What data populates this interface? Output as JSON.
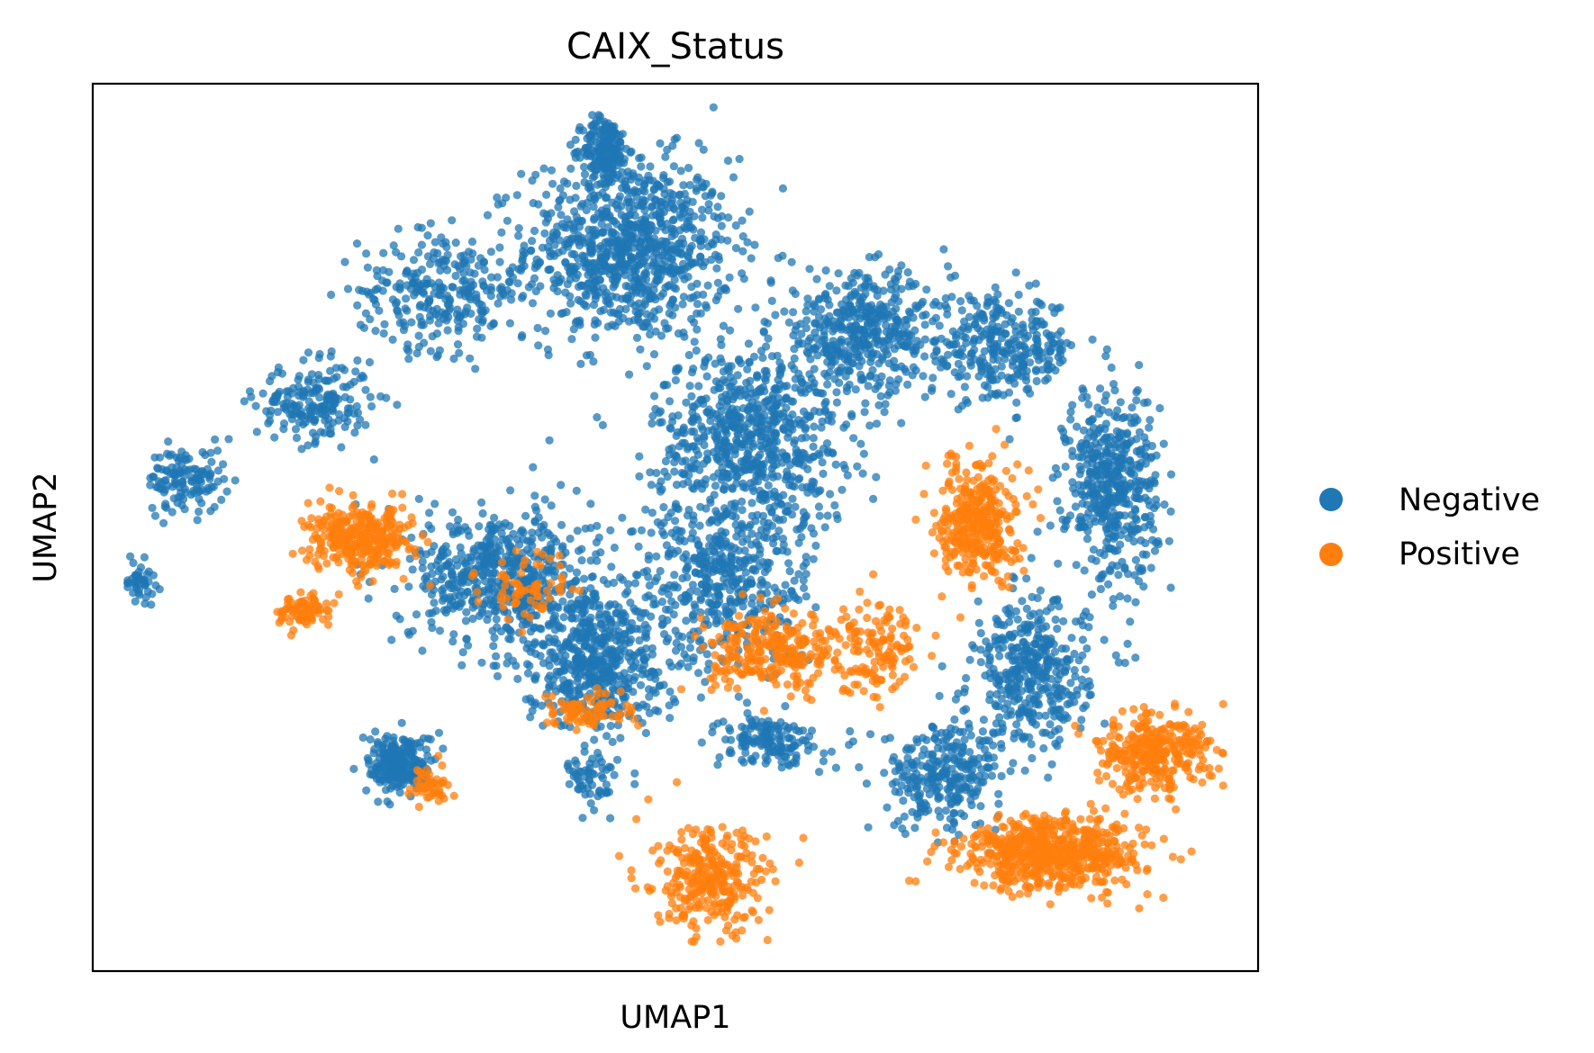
{
  "chart_data": {
    "type": "scatter",
    "title": "CAIX_Status",
    "xlabel": "UMAP1",
    "ylabel": "UMAP2",
    "xlim": [
      0,
      20
    ],
    "ylim": [
      0,
      15
    ],
    "xticks": [],
    "yticks": [],
    "grid": false,
    "legend_position": "right",
    "series": [
      {
        "name": "Negative",
        "color": "#1f77b4",
        "clusters": [
          {
            "x": 9.2,
            "y": 12.2,
            "sx": 1.6,
            "sy": 1.4,
            "n": 900
          },
          {
            "x": 8.8,
            "y": 13.9,
            "sx": 0.35,
            "sy": 0.5,
            "n": 180
          },
          {
            "x": 6.0,
            "y": 11.5,
            "sx": 1.3,
            "sy": 0.9,
            "n": 280
          },
          {
            "x": 3.8,
            "y": 9.6,
            "sx": 0.9,
            "sy": 0.6,
            "n": 200
          },
          {
            "x": 1.6,
            "y": 8.3,
            "sx": 0.6,
            "sy": 0.5,
            "n": 130
          },
          {
            "x": 0.8,
            "y": 6.6,
            "sx": 0.25,
            "sy": 0.3,
            "n": 45
          },
          {
            "x": 11.3,
            "y": 9.0,
            "sx": 1.5,
            "sy": 1.4,
            "n": 700
          },
          {
            "x": 13.2,
            "y": 10.8,
            "sx": 1.4,
            "sy": 0.9,
            "n": 450
          },
          {
            "x": 15.6,
            "y": 10.5,
            "sx": 1.2,
            "sy": 0.8,
            "n": 300
          },
          {
            "x": 17.5,
            "y": 8.2,
            "sx": 0.7,
            "sy": 1.5,
            "n": 480
          },
          {
            "x": 16.1,
            "y": 5.0,
            "sx": 0.9,
            "sy": 1.1,
            "n": 400
          },
          {
            "x": 14.6,
            "y": 3.3,
            "sx": 0.9,
            "sy": 0.8,
            "n": 280
          },
          {
            "x": 7.0,
            "y": 6.7,
            "sx": 1.4,
            "sy": 1.0,
            "n": 550
          },
          {
            "x": 8.6,
            "y": 5.3,
            "sx": 1.1,
            "sy": 1.1,
            "n": 550
          },
          {
            "x": 10.8,
            "y": 6.6,
            "sx": 1.4,
            "sy": 1.3,
            "n": 450
          },
          {
            "x": 5.3,
            "y": 3.5,
            "sx": 0.5,
            "sy": 0.45,
            "n": 260
          },
          {
            "x": 8.6,
            "y": 3.2,
            "sx": 0.4,
            "sy": 0.5,
            "n": 60
          },
          {
            "x": 11.6,
            "y": 3.9,
            "sx": 0.8,
            "sy": 0.4,
            "n": 150
          }
        ]
      },
      {
        "name": "Positive",
        "color": "#ff7f0e",
        "clusters": [
          {
            "x": 4.6,
            "y": 7.3,
            "sx": 0.8,
            "sy": 0.5,
            "n": 320
          },
          {
            "x": 3.6,
            "y": 6.1,
            "sx": 0.4,
            "sy": 0.25,
            "n": 90
          },
          {
            "x": 15.2,
            "y": 7.6,
            "sx": 0.6,
            "sy": 0.9,
            "n": 360
          },
          {
            "x": 16.5,
            "y": 2.0,
            "sx": 1.4,
            "sy": 0.55,
            "n": 650
          },
          {
            "x": 18.2,
            "y": 3.7,
            "sx": 0.9,
            "sy": 0.6,
            "n": 320
          },
          {
            "x": 10.6,
            "y": 1.5,
            "sx": 0.9,
            "sy": 0.8,
            "n": 300
          },
          {
            "x": 11.7,
            "y": 5.4,
            "sx": 1.0,
            "sy": 0.6,
            "n": 260
          },
          {
            "x": 13.4,
            "y": 5.5,
            "sx": 0.7,
            "sy": 0.7,
            "n": 140
          },
          {
            "x": 5.8,
            "y": 3.1,
            "sx": 0.3,
            "sy": 0.3,
            "n": 50
          },
          {
            "x": 8.5,
            "y": 4.4,
            "sx": 0.7,
            "sy": 0.3,
            "n": 80
          },
          {
            "x": 7.5,
            "y": 6.5,
            "sx": 0.8,
            "sy": 0.5,
            "n": 70
          }
        ]
      }
    ]
  }
}
